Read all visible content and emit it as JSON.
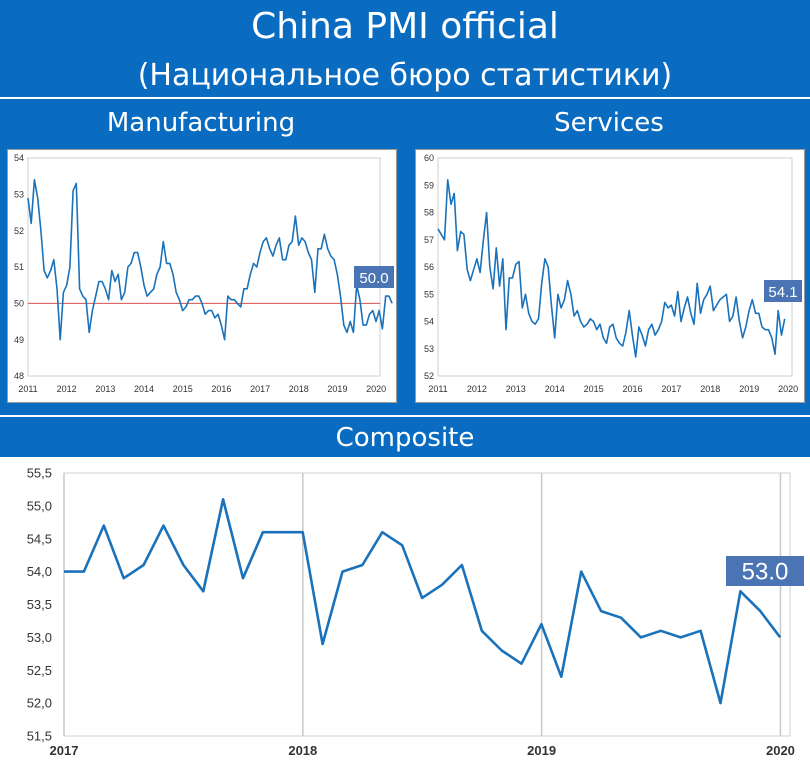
{
  "header": {
    "title": "China PMI official",
    "subtitle": "(Национальное бюро статистики)"
  },
  "sections": {
    "manufacturing": "Manufacturing",
    "services": "Services",
    "composite": "Composite"
  },
  "colors": {
    "band": "#0a6cc0",
    "line": "#1a72bb",
    "reference_line": "#d9534f",
    "badge": "#4a74b4"
  },
  "chart_data": [
    {
      "id": "manufacturing",
      "type": "line",
      "title": "Manufacturing",
      "xlim": [
        2011,
        2020.1
      ],
      "ylim": [
        48,
        54
      ],
      "x_ticks": [
        "2011",
        "2012",
        "2013",
        "2014",
        "2015",
        "2016",
        "2017",
        "2018",
        "2019",
        "2020"
      ],
      "y_ticks": [
        48,
        49,
        50,
        51,
        52,
        53,
        54
      ],
      "reference_line": 50,
      "last_value_label": "50.0",
      "x_start": 2011,
      "x_step": 0.0833,
      "values": [
        52.9,
        52.2,
        53.4,
        52.9,
        52.0,
        50.9,
        50.7,
        50.9,
        51.2,
        50.4,
        49.0,
        50.3,
        50.5,
        51.0,
        53.1,
        53.3,
        50.4,
        50.2,
        50.1,
        49.2,
        49.8,
        50.2,
        50.6,
        50.6,
        50.4,
        50.1,
        50.9,
        50.6,
        50.8,
        50.1,
        50.3,
        51.0,
        51.1,
        51.4,
        51.4,
        51.0,
        50.5,
        50.2,
        50.3,
        50.4,
        50.8,
        51.0,
        51.7,
        51.1,
        51.1,
        50.8,
        50.3,
        50.1,
        49.8,
        49.9,
        50.1,
        50.1,
        50.2,
        50.2,
        50.0,
        49.7,
        49.8,
        49.8,
        49.6,
        49.7,
        49.4,
        49.0,
        50.2,
        50.1,
        50.1,
        50.0,
        49.9,
        50.4,
        50.4,
        50.8,
        51.1,
        51.0,
        51.4,
        51.7,
        51.8,
        51.5,
        51.3,
        51.6,
        51.8,
        51.2,
        51.2,
        51.6,
        51.7,
        52.4,
        51.6,
        51.8,
        51.7,
        51.4,
        51.2,
        50.3,
        51.5,
        51.5,
        51.9,
        51.5,
        51.3,
        51.2,
        50.8,
        50.2,
        49.4,
        49.2,
        49.5,
        49.2,
        50.5,
        50.1,
        49.4,
        49.4,
        49.7,
        49.8,
        49.5,
        49.8,
        49.3,
        50.2,
        50.2,
        50.0
      ]
    },
    {
      "id": "services",
      "type": "line",
      "title": "Services",
      "xlim": [
        2011,
        2020.1
      ],
      "ylim": [
        52,
        60
      ],
      "x_ticks": [
        "2011",
        "2012",
        "2013",
        "2014",
        "2015",
        "2016",
        "2017",
        "2018",
        "2019",
        "2020"
      ],
      "y_ticks": [
        52,
        53,
        54,
        55,
        56,
        57,
        58,
        59,
        60
      ],
      "last_value_label": "54.1",
      "x_start": 2011,
      "x_step": 0.0833,
      "values": [
        57.4,
        57.2,
        57.0,
        59.2,
        58.3,
        58.7,
        56.6,
        57.3,
        57.2,
        55.9,
        55.5,
        55.9,
        56.3,
        55.8,
        57.0,
        58.0,
        56.0,
        55.2,
        56.7,
        55.3,
        56.3,
        53.7,
        55.6,
        55.6,
        56.1,
        56.2,
        54.5,
        55.0,
        54.3,
        54.0,
        53.9,
        54.1,
        55.4,
        56.3,
        56.0,
        54.6,
        53.4,
        55.0,
        54.5,
        54.8,
        55.5,
        55.0,
        54.2,
        54.4,
        54.0,
        53.8,
        53.9,
        54.1,
        54.0,
        53.7,
        53.9,
        53.4,
        53.2,
        53.8,
        53.9,
        53.4,
        53.2,
        53.1,
        53.6,
        54.4,
        53.5,
        52.7,
        53.8,
        53.5,
        53.1,
        53.7,
        53.9,
        53.5,
        53.7,
        54.0,
        54.7,
        54.5,
        54.6,
        54.2,
        55.1,
        54.0,
        54.5,
        54.9,
        54.3,
        53.9,
        55.4,
        54.3,
        54.8,
        55.0,
        55.3,
        54.4,
        54.6,
        54.8,
        54.9,
        55.0,
        54.0,
        54.2,
        54.9,
        54.0,
        53.4,
        53.8,
        54.4,
        54.8,
        54.3,
        54.3,
        53.8,
        53.7,
        53.7,
        53.4,
        52.8,
        54.4,
        53.5,
        54.1
      ]
    },
    {
      "id": "composite",
      "type": "line",
      "title": "Composite",
      "xlim": [
        2017,
        2020.04
      ],
      "ylim": [
        51.5,
        55.5
      ],
      "x_ticks": [
        "2017",
        "2018",
        "2019",
        "2020"
      ],
      "y_ticks": [
        "51,5",
        "52,0",
        "52,5",
        "53,0",
        "53,5",
        "54,0",
        "54,5",
        "55,0",
        "55,5"
      ],
      "last_value_label": "53.0",
      "x_start": 2017,
      "x_step": 0.0833,
      "values": [
        54.0,
        54.0,
        54.7,
        53.9,
        54.1,
        54.7,
        54.1,
        53.7,
        55.1,
        53.9,
        54.6,
        54.6,
        54.6,
        52.9,
        54.0,
        54.1,
        54.6,
        54.4,
        53.6,
        53.8,
        54.1,
        53.1,
        52.8,
        52.6,
        53.2,
        52.4,
        54.0,
        53.4,
        53.3,
        53.0,
        53.1,
        53.0,
        53.1,
        52.0,
        53.7,
        53.4,
        53.0
      ]
    }
  ]
}
